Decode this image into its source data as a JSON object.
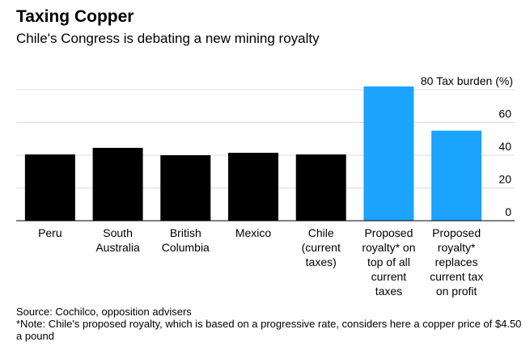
{
  "header": {
    "title": "Taxing Copper",
    "subtitle": "Chile's Congress is debating a new mining royalty"
  },
  "chart_data": {
    "type": "bar",
    "title": "Taxing Copper",
    "subtitle": "Chile's Congress is debating a new mining royalty",
    "ylabel": "Tax burden (%)",
    "ylim": [
      0,
      80
    ],
    "yticks": [
      0,
      20,
      40,
      60,
      80
    ],
    "grid": true,
    "legend": "none",
    "categories": [
      [
        "Peru"
      ],
      [
        "South",
        "Australia"
      ],
      [
        "British",
        "Columbia"
      ],
      [
        "Mexico"
      ],
      [
        "Chile",
        "(current",
        "taxes)"
      ],
      [
        "Proposed",
        "royalty* on",
        "top of all",
        "current",
        "taxes"
      ],
      [
        "Proposed",
        "royalty*",
        "replaces",
        "current tax",
        "on profit"
      ]
    ],
    "values": [
      40.5,
      44.5,
      40,
      41.5,
      40.5,
      82,
      55
    ],
    "colors": [
      "#000000",
      "#000000",
      "#000000",
      "#000000",
      "#000000",
      "#1aa3ff",
      "#1aa3ff"
    ]
  },
  "footer": {
    "source": "Source: Cochilco, opposition advisers",
    "note": "*Note: Chile's proposed royalty, which is based on a progressive rate, considers here a copper price of $4.50 a pound"
  }
}
